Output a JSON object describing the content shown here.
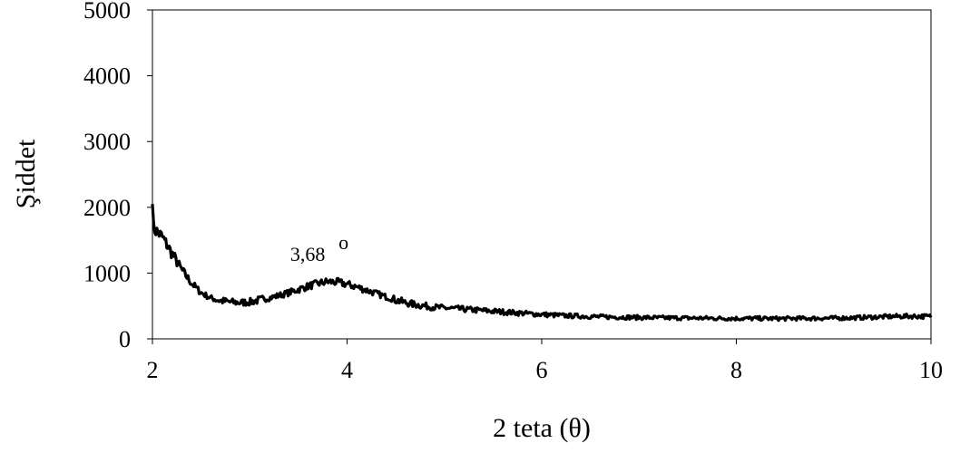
{
  "chart_data": {
    "type": "line",
    "title": "",
    "xlabel": "2 teta (θ)",
    "ylabel": "Şiddet",
    "xlim": [
      2,
      10
    ],
    "ylim": [
      0,
      5000
    ],
    "xticks": [
      2,
      4,
      6,
      8,
      10
    ],
    "yticks": [
      0,
      1000,
      2000,
      3000,
      4000,
      5000
    ],
    "grid": false,
    "legend": "none",
    "line_color": "#000000",
    "series": [
      {
        "x": [
          2.0,
          2.1,
          2.2,
          2.3,
          2.4,
          2.5,
          2.6,
          2.7,
          2.8,
          2.9,
          3.0,
          3.1,
          3.2,
          3.3,
          3.4,
          3.5,
          3.6,
          3.7,
          3.8,
          3.9,
          4.0,
          4.1,
          4.2,
          4.3,
          4.4,
          4.5,
          4.6,
          4.7,
          4.8,
          4.9,
          5.0,
          5.2,
          5.4,
          5.6,
          5.8,
          6.0,
          6.2,
          6.4,
          6.6,
          6.8,
          7.0,
          7.2,
          7.4,
          7.6,
          7.8,
          8.0,
          8.2,
          8.4,
          8.6,
          8.8,
          9.0,
          9.2,
          9.4,
          9.6,
          9.8,
          10.0
        ],
        "y": [
          1700,
          1550,
          1300,
          1050,
          850,
          700,
          620,
          580,
          560,
          550,
          560,
          590,
          620,
          660,
          700,
          750,
          800,
          840,
          870,
          860,
          830,
          790,
          740,
          690,
          640,
          590,
          550,
          520,
          500,
          480,
          470,
          450,
          430,
          410,
          390,
          370,
          355,
          345,
          335,
          330,
          325,
          320,
          318,
          315,
          312,
          310,
          310,
          308,
          310,
          312,
          315,
          320,
          330,
          340,
          345,
          340
        ]
      }
    ],
    "annotations": [
      {
        "text": "3,68",
        "degree_symbol": "o",
        "x": 3.68,
        "y": 870
      }
    ]
  }
}
